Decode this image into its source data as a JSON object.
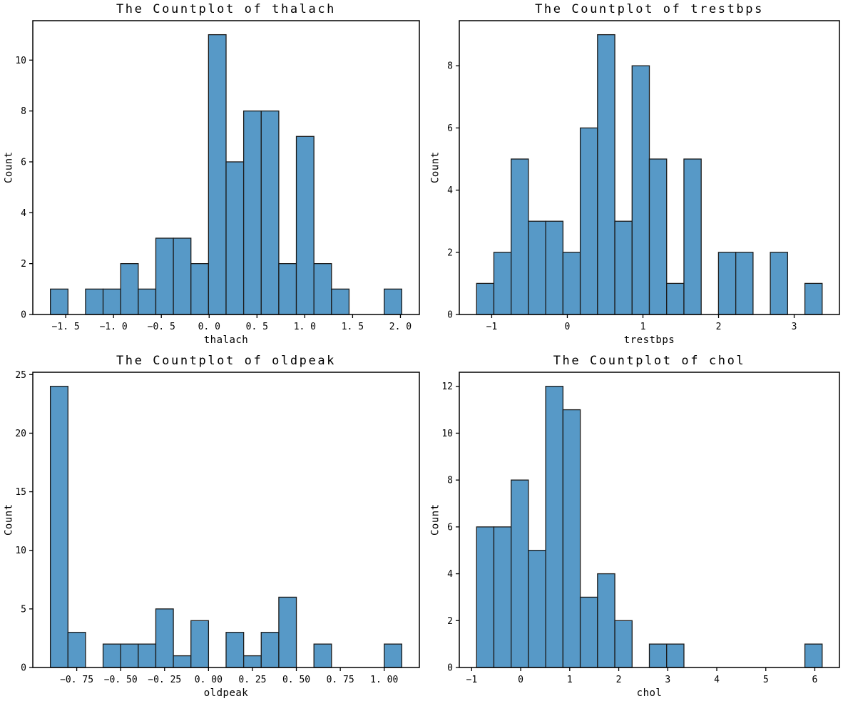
{
  "figure": {
    "background": "#ffffff",
    "spine_color": "#000000",
    "tick_color": "#000000"
  },
  "chart_data": [
    {
      "type": "bar",
      "title": "The Countplot of thalach",
      "xlabel": "thalach",
      "ylabel": "Count",
      "bar_color": "#5799c7",
      "bar_edge_color": "#1b1b1b",
      "bins": {
        "start": -1.66,
        "width": 0.1837
      },
      "values": [
        1,
        0,
        1,
        1,
        2,
        1,
        3,
        3,
        2,
        11,
        6,
        8,
        8,
        2,
        7,
        2,
        1,
        0,
        0,
        1
      ],
      "xlim": [
        -1.844,
        2.198
      ],
      "ylim": [
        0,
        11.55
      ],
      "grid": false,
      "xticks": [
        -1.5,
        -1.0,
        -0.5,
        0.0,
        0.5,
        1.0,
        1.5,
        2.0
      ],
      "xtick_labels": [
        "−1. 5",
        "−1. 0",
        "−0. 5",
        "0. 0",
        "0. 5",
        "1. 0",
        "1. 5",
        "2. 0"
      ],
      "yticks": [
        0,
        2,
        4,
        6,
        8,
        10
      ],
      "ytick_labels": [
        "0",
        "2",
        "4",
        "6",
        "8",
        "10"
      ]
    },
    {
      "type": "bar",
      "title": "The Countplot of trestbps",
      "xlabel": "trestbps",
      "ylabel": "Count",
      "bar_color": "#5799c7",
      "bar_edge_color": "#1b1b1b",
      "bins": {
        "start": -1.2,
        "width": 0.2285
      },
      "values": [
        1,
        2,
        5,
        3,
        3,
        2,
        6,
        9,
        3,
        8,
        5,
        1,
        5,
        0,
        2,
        2,
        0,
        2,
        0,
        1
      ],
      "xlim": [
        -1.4285,
        3.5985
      ],
      "ylim": [
        0,
        9.45
      ],
      "grid": false,
      "xticks": [
        -1,
        0,
        1,
        2,
        3
      ],
      "xtick_labels": [
        "−1",
        "0",
        "1",
        "2",
        "3"
      ],
      "yticks": [
        0,
        2,
        4,
        6,
        8
      ],
      "ytick_labels": [
        "0",
        "2",
        "4",
        "6",
        "8"
      ]
    },
    {
      "type": "bar",
      "title": "The Countplot of oldpeak",
      "xlabel": "oldpeak",
      "ylabel": "Count",
      "bar_color": "#5799c7",
      "bar_edge_color": "#1b1b1b",
      "bins": {
        "start": -0.9,
        "width": 0.1
      },
      "values": [
        24,
        3,
        0,
        2,
        2,
        2,
        5,
        1,
        4,
        0,
        3,
        1,
        3,
        6,
        0,
        2,
        0,
        0,
        0,
        2
      ],
      "xlim": [
        -1.0,
        1.2
      ],
      "ylim": [
        0,
        25.2
      ],
      "grid": false,
      "xticks": [
        -0.75,
        -0.5,
        -0.25,
        0.0,
        0.25,
        0.5,
        0.75,
        1.0
      ],
      "xtick_labels": [
        "−0. 75",
        "−0. 50",
        "−0. 25",
        "0. 00",
        "0. 25",
        "0. 50",
        "0. 75",
        "1. 00"
      ],
      "yticks": [
        0,
        5,
        10,
        15,
        20,
        25
      ],
      "ytick_labels": [
        "0",
        "5",
        "10",
        "15",
        "20",
        "25"
      ]
    },
    {
      "type": "bar",
      "title": "The Countplot of chol",
      "xlabel": "chol",
      "ylabel": "Count",
      "bar_color": "#5799c7",
      "bar_edge_color": "#1b1b1b",
      "bins": {
        "start": -0.9,
        "width": 0.3525
      },
      "values": [
        6,
        6,
        8,
        5,
        12,
        11,
        3,
        4,
        2,
        0,
        1,
        1,
        0,
        0,
        0,
        0,
        0,
        0,
        0,
        1
      ],
      "xlim": [
        -1.2525,
        6.5025
      ],
      "ylim": [
        0,
        12.6
      ],
      "grid": false,
      "xticks": [
        -1,
        0,
        1,
        2,
        3,
        4,
        5,
        6
      ],
      "xtick_labels": [
        "−1",
        "0",
        "1",
        "2",
        "3",
        "4",
        "5",
        "6"
      ],
      "yticks": [
        0,
        2,
        4,
        6,
        8,
        10,
        12
      ],
      "ytick_labels": [
        "0",
        "2",
        "4",
        "6",
        "8",
        "10",
        "12"
      ]
    }
  ]
}
